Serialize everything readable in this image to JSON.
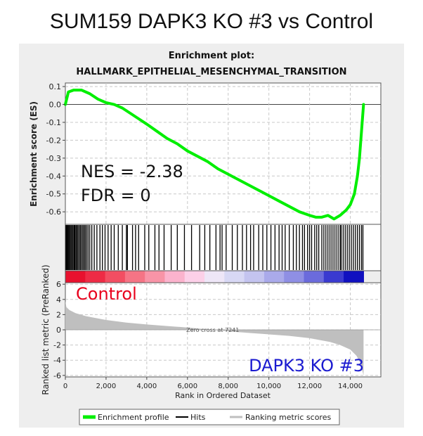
{
  "header": {
    "title": "SUM159 DAPK3 KO #3 vs Control"
  },
  "chart_data": {
    "type": "line",
    "title_line1": "Enrichment plot:",
    "title_line2": "HALLMARK_EPITHELIAL_MESENCHYMAL_TRANSITION",
    "xlabel": "Rank in Ordered Dataset",
    "ylabel_top": "Enrichment score (ES)",
    "ylabel_bottom": "Ranked list metric (PreRanked)",
    "xlim": [
      0,
      15500
    ],
    "es_ylim": [
      -0.67,
      0.12
    ],
    "metric_ylim": [
      -6.2,
      6.2
    ],
    "x_ticks": [
      0,
      2000,
      4000,
      6000,
      8000,
      10000,
      12000,
      14000
    ],
    "x_tick_labels": [
      "0",
      "2,000",
      "4,000",
      "6,000",
      "8,000",
      "10,000",
      "12,000",
      "14,000"
    ],
    "es_ticks": [
      0.1,
      0.0,
      -0.1,
      -0.2,
      -0.3,
      -0.4,
      -0.5,
      -0.6
    ],
    "es_tick_labels": [
      "0.1",
      "0.0",
      "-0.1",
      "-0.2",
      "-0.3",
      "-0.4",
      "-0.5",
      "-0.6"
    ],
    "metric_ticks": [
      6,
      4,
      2,
      0,
      -2,
      -4,
      -6
    ],
    "metric_tick_labels": [
      "6",
      "4",
      "2",
      "0",
      "-2",
      "-4",
      "-6"
    ],
    "enrichment_profile": {
      "x": [
        0,
        150,
        400,
        800,
        1200,
        1600,
        2000,
        2400,
        2800,
        3200,
        3600,
        4000,
        4500,
        5000,
        5500,
        6000,
        6500,
        7000,
        7500,
        8000,
        8500,
        9000,
        9500,
        10000,
        10500,
        11000,
        11500,
        12000,
        12300,
        12600,
        12900,
        13200,
        13500,
        13800,
        14000,
        14200,
        14350,
        14450,
        14550,
        14650
      ],
      "y": [
        0.0,
        0.07,
        0.08,
        0.08,
        0.06,
        0.03,
        0.01,
        0.0,
        -0.02,
        -0.05,
        -0.08,
        -0.11,
        -0.15,
        -0.19,
        -0.22,
        -0.26,
        -0.29,
        -0.32,
        -0.36,
        -0.39,
        -0.42,
        -0.45,
        -0.48,
        -0.51,
        -0.54,
        -0.57,
        -0.6,
        -0.62,
        -0.63,
        -0.63,
        -0.62,
        -0.64,
        -0.62,
        -0.59,
        -0.56,
        -0.5,
        -0.4,
        -0.3,
        -0.15,
        0.0
      ]
    },
    "hits": [
      30,
      60,
      100,
      140,
      180,
      230,
      280,
      330,
      380,
      430,
      470,
      520,
      570,
      620,
      680,
      740,
      800,
      860,
      920,
      980,
      1050,
      1120,
      1200,
      1300,
      1420,
      1550,
      1700,
      1820,
      1950,
      2100,
      2250,
      2400,
      2600,
      2800,
      3000,
      3050,
      3300,
      3450,
      3600,
      3900,
      4100,
      4400,
      4600,
      4850,
      5200,
      5500,
      5850,
      6200,
      6600,
      6850,
      7100,
      7400,
      7600,
      7700,
      7900,
      8200,
      8450,
      8700,
      8900,
      9100,
      9250,
      9500,
      9700,
      9900,
      10100,
      10300,
      10500,
      10650,
      10800,
      11000,
      11200,
      11350,
      11500,
      11650,
      11750,
      11900,
      12000,
      12100,
      12250,
      12350,
      12450,
      12600,
      12700,
      12800,
      12900,
      13000,
      13100,
      13200,
      13300,
      13400,
      13500,
      13550,
      13650,
      13750,
      13850,
      13950,
      14050,
      14150,
      14250,
      14350,
      14450,
      14550,
      14620
    ],
    "ranking_metric": {
      "x": [
        0,
        50,
        200,
        500,
        1000,
        2000,
        3000,
        4000,
        5000,
        6000,
        7241,
        8000,
        9000,
        10000,
        11000,
        12000,
        13000,
        13500,
        14000,
        14300,
        14500,
        14650
      ],
      "y": [
        3.8,
        3.0,
        2.6,
        2.2,
        1.8,
        1.3,
        0.95,
        0.7,
        0.5,
        0.3,
        0.0,
        -0.2,
        -0.4,
        -0.6,
        -0.8,
        -1.1,
        -1.6,
        -2.0,
        -2.6,
        -3.4,
        -4.4,
        -6.0
      ]
    },
    "zero_cross_label": "Zero cross at 7241",
    "gradient_colors": [
      "#e8112e",
      "#ee2b45",
      "#f24e62",
      "#f57485",
      "#f894a7",
      "#fbb3cd",
      "#fcd0e8",
      "#eee6f7",
      "#d8d8f4",
      "#c4c4ef",
      "#aaaaea",
      "#8f8fe4",
      "#6b6bdc",
      "#3a3ad0",
      "#1010c0"
    ],
    "annotation_nes": "NES = -2.38",
    "annotation_fdr": "FDR = 0",
    "annotation_control": "Control",
    "annotation_ko": "DAPK3 KO #3",
    "legend": [
      {
        "label": "Enrichment profile",
        "color": "#00ee00"
      },
      {
        "label": "Hits",
        "color": "#000000"
      },
      {
        "label": "Ranking metric scores",
        "color": "#bfbfbf"
      }
    ],
    "colors": {
      "profile": "#00ee00",
      "hits": "#000000",
      "metric": "#bfbfbf",
      "control": "#e8001c",
      "ko": "#1a1ad0",
      "panel_bg": "#eeeeee"
    }
  }
}
